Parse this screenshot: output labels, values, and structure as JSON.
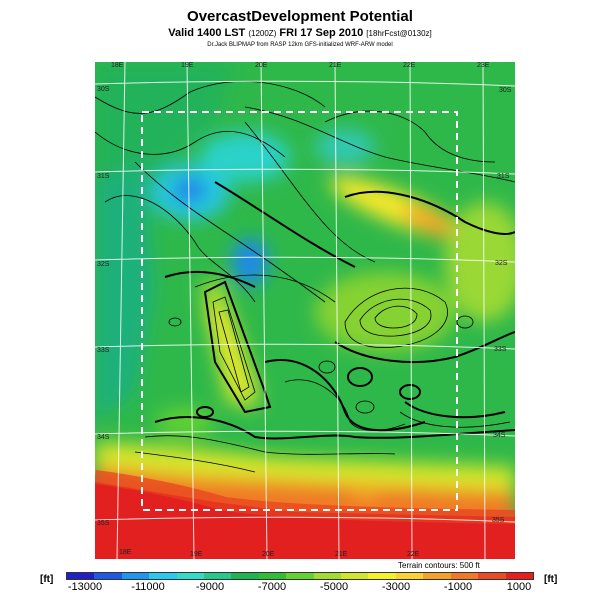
{
  "header": {
    "title": "OvercastDevelopment Potential",
    "valid_prefix": "Valid 1400 LST",
    "valid_utc": "(1200Z)",
    "valid_date": "FRI 17 Sep 2010",
    "forecast_tag": "[18hrFcst@0130z]",
    "credit": "Dr.Jack BLIPMAP from RASP 12km GFS-initialized WRF-ARW model"
  },
  "map": {
    "lon_labels_top": [
      "18E",
      "19E",
      "20E",
      "21E",
      "22E",
      "23E"
    ],
    "lon_labels_bottom": [
      "18E",
      "19E",
      "20E",
      "21E",
      "22E"
    ],
    "lat_labels_left": [
      "30S",
      "31S",
      "32S",
      "33S",
      "34S",
      "35S"
    ],
    "lat_labels_right": [
      "30S",
      "31S",
      "32S",
      "33S",
      "34S",
      "35S"
    ],
    "terrain_note": "Terrain contours: 500 ft"
  },
  "colorbar": {
    "unit": "[ft]",
    "labels": [
      "-13000",
      "-11000",
      "-9000",
      "-7000",
      "-5000",
      "-3000",
      "-1000",
      "1000"
    ],
    "colors": [
      "#2020c8",
      "#1e5ae6",
      "#1e96f0",
      "#28c8f0",
      "#32dcc8",
      "#28c88c",
      "#1eb450",
      "#32be32",
      "#64d232",
      "#a0dc32",
      "#d2e628",
      "#f5f028",
      "#fad232",
      "#f5a028",
      "#f07828",
      "#eb4b23",
      "#e61e1e"
    ]
  }
}
